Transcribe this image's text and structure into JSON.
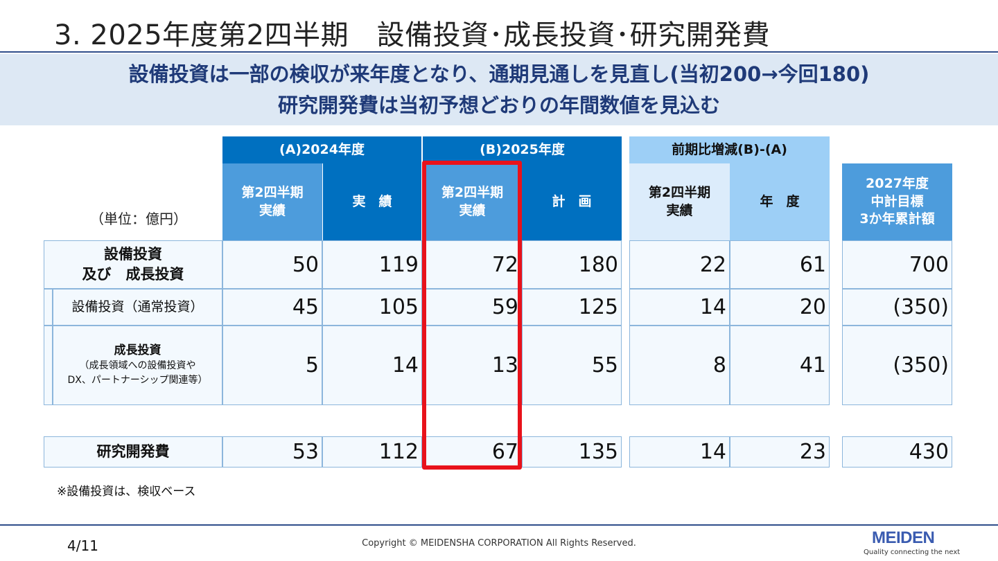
{
  "title": "3. 2025年度第2四半期　設備投資･成長投資･研究開発費",
  "subtitle": {
    "line1": "設備投資は一部の検収が来年度となり、通期見通しを見直し(当初200→今回180)",
    "line2": "研究開発費は当初予想どおりの年間数値を見込む"
  },
  "table": {
    "unit": "（単位：億円）",
    "groups": {
      "a": "(A)2024年度",
      "b": "(B)2025年度",
      "c": "前期比増減(B)-(A)"
    },
    "cols": {
      "a_q2": "第2四半期\n実績",
      "a_full": "実　績",
      "b_q2": "第2四半期\n実績",
      "b_plan": "計　画",
      "c_q2": "第2四半期\n実績",
      "c_year": "年　度",
      "d": "2027年度\n中計目標\n3か年累計額"
    },
    "rows": [
      {
        "label": "設備投資\n及び　成長投資",
        "values": [
          "50",
          "119",
          "72",
          "180",
          "22",
          "61",
          "700"
        ]
      },
      {
        "label": "設備投資（通常投資）",
        "values": [
          "45",
          "105",
          "59",
          "125",
          "14",
          "20",
          "(350)"
        ]
      },
      {
        "label": "成長投資",
        "sublabel": "（成長領域への設備投資や\nDX、パートナーシップ関連等）",
        "values": [
          "5",
          "14",
          "13",
          "55",
          "8",
          "41",
          "(350)"
        ]
      },
      {
        "label": "研究開発費",
        "values": [
          "53",
          "112",
          "67",
          "135",
          "14",
          "23",
          "430"
        ]
      }
    ]
  },
  "note": "※設備投資は、検収ベース",
  "footer": {
    "page": "4/11",
    "copyright": "Copyright © MEIDENSHA CORPORATION All Rights Reserved.",
    "logo": "MEIDEN",
    "tagline": "Quality connecting the next"
  }
}
